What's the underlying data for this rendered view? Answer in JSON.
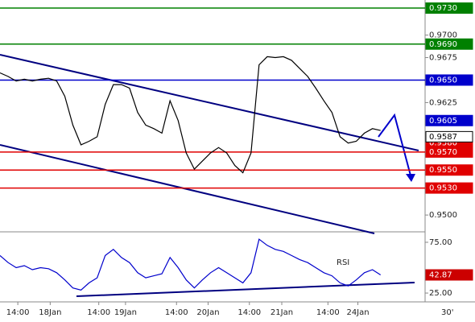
{
  "chart_data": [
    {
      "type": "line",
      "x": [
        0,
        2,
        4,
        6,
        8,
        10,
        12,
        14,
        16,
        18,
        20,
        22,
        24,
        26,
        28,
        30,
        32,
        34,
        36,
        38,
        40,
        42,
        44,
        46,
        48,
        50,
        52,
        54,
        56,
        58,
        60,
        62,
        64,
        66,
        68,
        70,
        72,
        74,
        76,
        78,
        80,
        82,
        84,
        86,
        88,
        90,
        92,
        94
      ],
      "values": [
        0.9658,
        0.9654,
        0.9649,
        0.9651,
        0.9649,
        0.9651,
        0.9652,
        0.9649,
        0.9632,
        0.96,
        0.9578,
        0.9582,
        0.9587,
        0.9623,
        0.9645,
        0.9645,
        0.9641,
        0.9614,
        0.96,
        0.9596,
        0.9591,
        0.9627,
        0.9605,
        0.9569,
        0.9551,
        0.956,
        0.9569,
        0.9575,
        0.9569,
        0.9555,
        0.9547,
        0.9569,
        0.9667,
        0.9676,
        0.9675,
        0.9676,
        0.9672,
        0.9663,
        0.9654,
        0.9641,
        0.9627,
        0.9614,
        0.9587,
        0.958,
        0.9582,
        0.9591,
        0.9596,
        0.9594
      ],
      "color": "#000000",
      "xlim": [
        0,
        105
      ],
      "xticks": [
        {
          "value": 4.4,
          "label": "14:00"
        },
        {
          "value": 12.4,
          "label": "18Jan"
        },
        {
          "value": 24.4,
          "label": "14:00"
        },
        {
          "value": 31,
          "label": "19Jan"
        },
        {
          "value": 43.6,
          "label": "14:00"
        },
        {
          "value": 51.4,
          "label": "20Jan"
        },
        {
          "value": 61.6,
          "label": "14:00"
        },
        {
          "value": 69.6,
          "label": "21Jan"
        },
        {
          "value": 81,
          "label": "14:00"
        },
        {
          "value": 88.4,
          "label": "24Jan"
        }
      ],
      "ylim": [
        0.9484,
        0.9739
      ],
      "yticks": [
        {
          "value": 0.97,
          "label": "0.9700"
        },
        {
          "value": 0.9675,
          "label": "0.9675"
        },
        {
          "value": 0.9625,
          "label": "0.9625"
        },
        {
          "value": 0.95,
          "label": "0.9500"
        }
      ],
      "price_labels": [
        {
          "value": 0.973,
          "label": "0.9730",
          "color": "#008000",
          "line": true
        },
        {
          "value": 0.969,
          "label": "0.9690",
          "color": "#008000",
          "line": true
        },
        {
          "value": 0.965,
          "label": "0.9650",
          "color": "#0000cc",
          "line": true
        },
        {
          "value": 0.9605,
          "label": "0.9605",
          "color": "#0000cc",
          "line": false
        },
        {
          "value": 0.958,
          "label": "0.9580",
          "color": "#e00000",
          "line": false
        },
        {
          "value": 0.9587,
          "label": "0.9587",
          "color": "#ffffff",
          "line": false
        },
        {
          "value": 0.957,
          "label": "0.9570",
          "color": "#e00000",
          "line": true
        },
        {
          "value": 0.955,
          "label": "0.9550",
          "color": "#e00000",
          "line": true
        },
        {
          "value": 0.953,
          "label": "0.9530",
          "color": "#e00000",
          "line": true
        }
      ],
      "timeframe": "30'"
    },
    {
      "type": "line",
      "title": "RSI",
      "x": [
        0,
        2,
        4,
        6,
        8,
        10,
        12,
        14,
        16,
        18,
        20,
        22,
        24,
        26,
        28,
        30,
        32,
        34,
        36,
        38,
        40,
        42,
        44,
        46,
        48,
        50,
        52,
        54,
        56,
        58,
        60,
        62,
        64,
        66,
        68,
        70,
        72,
        74,
        76,
        78,
        80,
        82,
        84,
        86,
        88,
        90,
        92,
        94
      ],
      "values": [
        62,
        55,
        50,
        52,
        48,
        50,
        49,
        45,
        38,
        30,
        28,
        35,
        40,
        62,
        68,
        60,
        55,
        45,
        40,
        42,
        44,
        60,
        50,
        38,
        30,
        38,
        45,
        50,
        45,
        40,
        35,
        45,
        78,
        72,
        68,
        66,
        62,
        58,
        55,
        50,
        45,
        42,
        35,
        32,
        38,
        45,
        48,
        42.87
      ],
      "color": "#0000cc",
      "xlim": [
        0,
        105
      ],
      "ylim": [
        18.7,
        83.7
      ],
      "yticks": [
        {
          "value": 75,
          "label": "75.00"
        },
        {
          "value": 25,
          "label": "25.00"
        }
      ],
      "current": {
        "value": 42.87,
        "label": "42.87",
        "color": "#cc0000"
      }
    }
  ]
}
